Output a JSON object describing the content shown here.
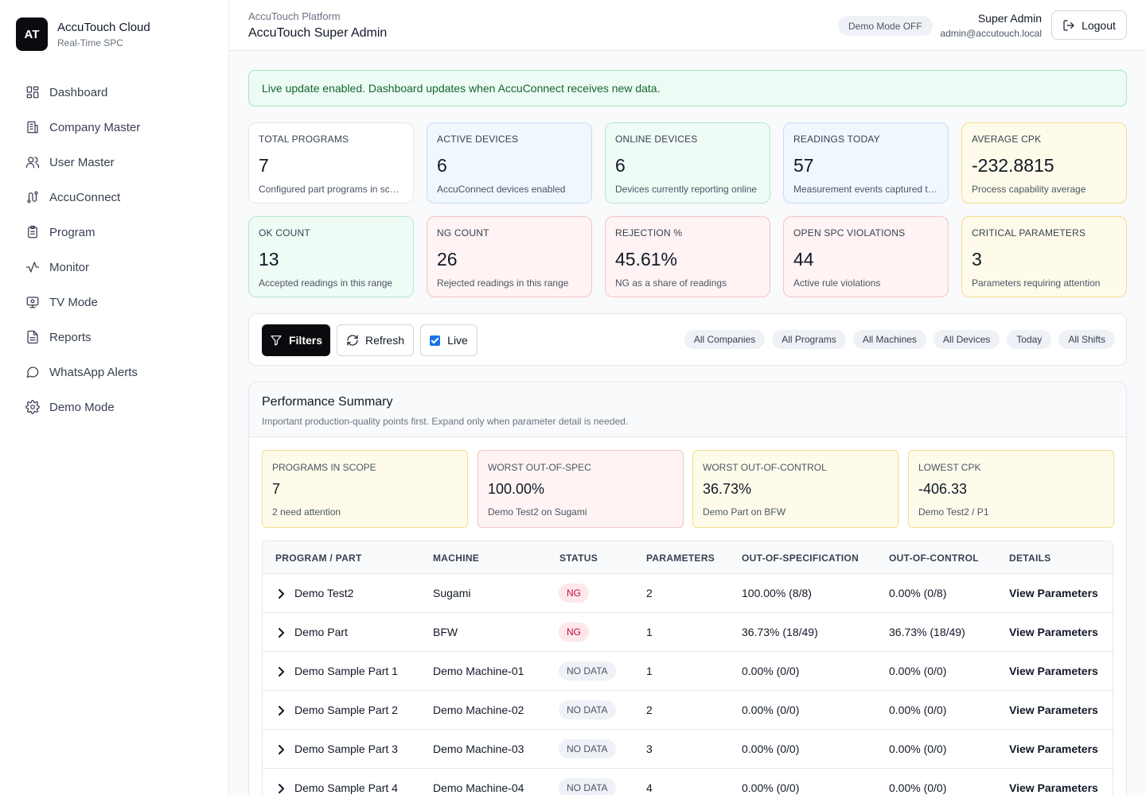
{
  "brand": {
    "logo": "AT",
    "name": "AccuTouch Cloud",
    "subtitle": "Real-Time SPC"
  },
  "nav": [
    {
      "label": "Dashboard",
      "icon": "dashboard-icon"
    },
    {
      "label": "Company Master",
      "icon": "building-icon"
    },
    {
      "label": "User Master",
      "icon": "users-icon"
    },
    {
      "label": "AccuConnect",
      "icon": "route-icon"
    },
    {
      "label": "Program",
      "icon": "clipboard-icon"
    },
    {
      "label": "Monitor",
      "icon": "activity-icon"
    },
    {
      "label": "TV Mode",
      "icon": "monitor-icon"
    },
    {
      "label": "Reports",
      "icon": "file-icon"
    },
    {
      "label": "WhatsApp Alerts",
      "icon": "message-icon"
    },
    {
      "label": "Demo Mode",
      "icon": "gear-icon"
    }
  ],
  "header": {
    "subtitle": "AccuTouch Platform",
    "title": "AccuTouch Super Admin",
    "demo_mode": "Demo Mode OFF",
    "user_name": "Super Admin",
    "user_email": "admin@accutouch.local",
    "logout_label": "Logout"
  },
  "banner": "Live update enabled. Dashboard updates when AccuConnect receives new data.",
  "kpis": [
    {
      "label": "TOTAL PROGRAMS",
      "value": "7",
      "desc": "Configured part programs in scope"
    },
    {
      "label": "ACTIVE DEVICES",
      "value": "6",
      "desc": "AccuConnect devices enabled"
    },
    {
      "label": "ONLINE DEVICES",
      "value": "6",
      "desc": "Devices currently reporting online"
    },
    {
      "label": "READINGS TODAY",
      "value": "57",
      "desc": "Measurement events captured today"
    },
    {
      "label": "AVERAGE CPK",
      "value": "-232.8815",
      "desc": "Process capability average"
    },
    {
      "label": "OK COUNT",
      "value": "13",
      "desc": "Accepted readings in this range"
    },
    {
      "label": "NG COUNT",
      "value": "26",
      "desc": "Rejected readings in this range"
    },
    {
      "label": "REJECTION %",
      "value": "45.61%",
      "desc": "NG as a share of readings"
    },
    {
      "label": "OPEN SPC VIOLATIONS",
      "value": "44",
      "desc": "Active rule violations"
    },
    {
      "label": "CRITICAL PARAMETERS",
      "value": "3",
      "desc": "Parameters requiring attention"
    }
  ],
  "toolbar": {
    "filters_label": "Filters",
    "refresh_label": "Refresh",
    "live_label": "Live"
  },
  "chips": [
    "All Companies",
    "All Programs",
    "All Machines",
    "All Devices",
    "Today",
    "All Shifts"
  ],
  "performance": {
    "title": "Performance Summary",
    "subtitle": "Important production-quality points first. Expand only when parameter detail is needed.",
    "cards": [
      {
        "label": "PROGRAMS IN SCOPE",
        "value": "7",
        "desc": "2 need attention"
      },
      {
        "label": "WORST OUT-OF-SPEC",
        "value": "100.00%",
        "desc": "Demo Test2 on Sugami"
      },
      {
        "label": "WORST OUT-OF-CONTROL",
        "value": "36.73%",
        "desc": "Demo Part on BFW"
      },
      {
        "label": "LOWEST CPK",
        "value": "-406.33",
        "desc": "Demo Test2 / P1"
      }
    ],
    "columns": [
      "PROGRAM / PART",
      "MACHINE",
      "STATUS",
      "PARAMETERS",
      "OUT-OF-SPECIFICATION",
      "OUT-OF-CONTROL",
      "DETAILS"
    ],
    "rows": [
      {
        "program": "Demo Test2",
        "machine": "Sugami",
        "status": "NG",
        "parameters": "2",
        "oos": "100.00% (8/8)",
        "ooc": "0.00% (0/8)",
        "details": "View Parameters"
      },
      {
        "program": "Demo Part",
        "machine": "BFW",
        "status": "NG",
        "parameters": "1",
        "oos": "36.73% (18/49)",
        "ooc": "36.73% (18/49)",
        "details": "View Parameters"
      },
      {
        "program": "Demo Sample Part 1",
        "machine": "Demo Machine-01",
        "status": "NO DATA",
        "parameters": "1",
        "oos": "0.00% (0/0)",
        "ooc": "0.00% (0/0)",
        "details": "View Parameters"
      },
      {
        "program": "Demo Sample Part 2",
        "machine": "Demo Machine-02",
        "status": "NO DATA",
        "parameters": "2",
        "oos": "0.00% (0/0)",
        "ooc": "0.00% (0/0)",
        "details": "View Parameters"
      },
      {
        "program": "Demo Sample Part 3",
        "machine": "Demo Machine-03",
        "status": "NO DATA",
        "parameters": "3",
        "oos": "0.00% (0/0)",
        "ooc": "0.00% (0/0)",
        "details": "View Parameters"
      },
      {
        "program": "Demo Sample Part 4",
        "machine": "Demo Machine-04",
        "status": "NO DATA",
        "parameters": "4",
        "oos": "0.00% (0/0)",
        "ooc": "0.00% (0/0)",
        "details": "View Parameters"
      }
    ]
  }
}
